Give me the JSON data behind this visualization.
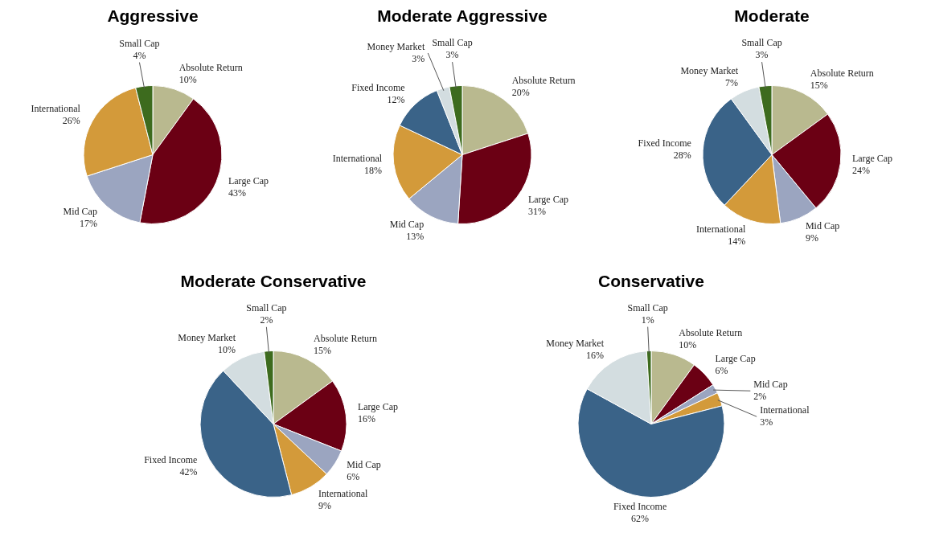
{
  "chart_data": [
    {
      "type": "pie",
      "title": "Aggressive",
      "categories": [
        "Absolute Return",
        "Large Cap",
        "Mid Cap",
        "International",
        "Small Cap"
      ],
      "values": [
        10,
        43,
        17,
        26,
        4
      ],
      "colors": [
        "#b9b98f",
        "#6b0014",
        "#9ba5c0",
        "#d39a3a",
        "#3d6b1e"
      ],
      "value_labels": [
        "10%",
        "43%",
        "17%",
        "26%",
        "4%"
      ]
    },
    {
      "type": "pie",
      "title": "Moderate Aggressive",
      "categories": [
        "Absolute Return",
        "Large Cap",
        "Mid Cap",
        "International",
        "Fixed Income",
        "Money Market",
        "Small Cap"
      ],
      "values": [
        20,
        31,
        13,
        18,
        12,
        3,
        3
      ],
      "colors": [
        "#b9b98f",
        "#6b0014",
        "#9ba5c0",
        "#d39a3a",
        "#3a6388",
        "#d3dde0",
        "#3d6b1e"
      ],
      "value_labels": [
        "20%",
        "31%",
        "13%",
        "18%",
        "12%",
        "3%",
        "3%"
      ]
    },
    {
      "type": "pie",
      "title": "Moderate",
      "categories": [
        "Absolute Return",
        "Large Cap",
        "Mid Cap",
        "International",
        "Fixed Income",
        "Money Market",
        "Small Cap"
      ],
      "values": [
        15,
        24,
        9,
        14,
        28,
        7,
        3
      ],
      "colors": [
        "#b9b98f",
        "#6b0014",
        "#9ba5c0",
        "#d39a3a",
        "#3a6388",
        "#d3dde0",
        "#3d6b1e"
      ],
      "value_labels": [
        "15%",
        "24%",
        "9%",
        "14%",
        "28%",
        "7%",
        "3%"
      ]
    },
    {
      "type": "pie",
      "title": "Moderate Conservative",
      "categories": [
        "Absolute Return",
        "Large Cap",
        "Mid Cap",
        "International",
        "Fixed Income",
        "Money Market",
        "Small Cap"
      ],
      "values": [
        15,
        16,
        6,
        9,
        42,
        10,
        2
      ],
      "colors": [
        "#b9b98f",
        "#6b0014",
        "#9ba5c0",
        "#d39a3a",
        "#3a6388",
        "#d3dde0",
        "#3d6b1e"
      ],
      "value_labels": [
        "15%",
        "16%",
        "6%",
        "9%",
        "42%",
        "10%",
        "2%"
      ]
    },
    {
      "type": "pie",
      "title": "Conservative",
      "categories": [
        "Absolute Return",
        "Large Cap",
        "Mid Cap",
        "International",
        "Fixed Income",
        "Money Market",
        "Small Cap"
      ],
      "values": [
        10,
        6,
        2,
        3,
        62,
        16,
        1
      ],
      "colors": [
        "#b9b98f",
        "#6b0014",
        "#9ba5c0",
        "#d39a3a",
        "#3a6388",
        "#d3dde0",
        "#3d6b1e"
      ],
      "value_labels": [
        "10%",
        "6%",
        "2%",
        "3%",
        "62%",
        "16%",
        "1%"
      ]
    }
  ]
}
